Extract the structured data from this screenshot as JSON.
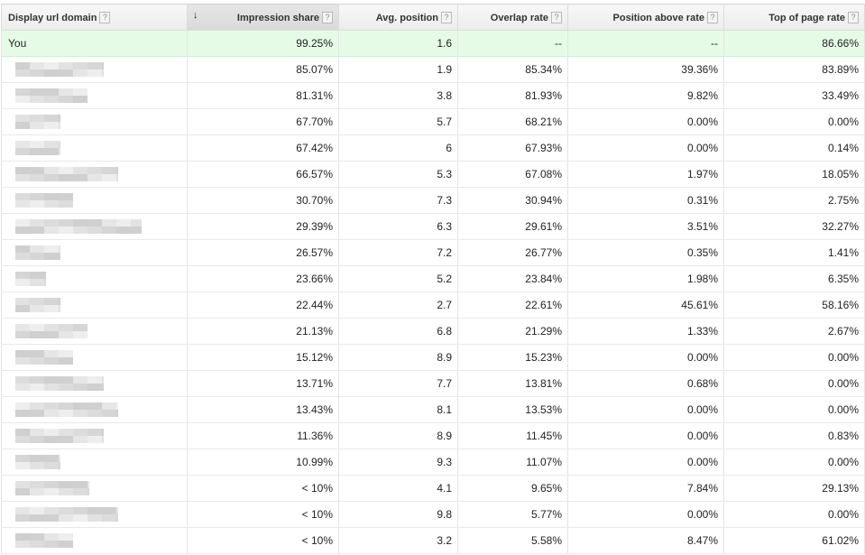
{
  "header": {
    "columns": [
      {
        "label": "Display url domain",
        "align": "left"
      },
      {
        "label": "Impression share",
        "sorted": "descending"
      },
      {
        "label": "Avg. position"
      },
      {
        "label": "Overlap rate"
      },
      {
        "label": "Position above rate"
      },
      {
        "label": "Top of page rate"
      }
    ],
    "help_glyph": "?",
    "sort_glyph": "↓"
  },
  "you_row": {
    "domain": "You",
    "impression_share": "99.25%",
    "avg_position": "1.6",
    "overlap_rate": "--",
    "position_above_rate": "--",
    "top_of_page_rate": "86.66%"
  },
  "rows": [
    {
      "impression_share": "85.07%",
      "avg_position": "1.9",
      "overlap_rate": "85.34%",
      "position_above_rate": "39.36%",
      "top_of_page_rate": "83.89%"
    },
    {
      "impression_share": "81.31%",
      "avg_position": "3.8",
      "overlap_rate": "81.93%",
      "position_above_rate": "9.82%",
      "top_of_page_rate": "33.49%"
    },
    {
      "impression_share": "67.70%",
      "avg_position": "5.7",
      "overlap_rate": "68.21%",
      "position_above_rate": "0.00%",
      "top_of_page_rate": "0.00%"
    },
    {
      "impression_share": "67.42%",
      "avg_position": "6",
      "overlap_rate": "67.93%",
      "position_above_rate": "0.00%",
      "top_of_page_rate": "0.14%"
    },
    {
      "impression_share": "66.57%",
      "avg_position": "5.3",
      "overlap_rate": "67.08%",
      "position_above_rate": "1.97%",
      "top_of_page_rate": "18.05%"
    },
    {
      "impression_share": "30.70%",
      "avg_position": "7.3",
      "overlap_rate": "30.94%",
      "position_above_rate": "0.31%",
      "top_of_page_rate": "2.75%"
    },
    {
      "impression_share": "29.39%",
      "avg_position": "6.3",
      "overlap_rate": "29.61%",
      "position_above_rate": "3.51%",
      "top_of_page_rate": "32.27%"
    },
    {
      "impression_share": "26.57%",
      "avg_position": "7.2",
      "overlap_rate": "26.77%",
      "position_above_rate": "0.35%",
      "top_of_page_rate": "1.41%"
    },
    {
      "impression_share": "23.66%",
      "avg_position": "5.2",
      "overlap_rate": "23.84%",
      "position_above_rate": "1.98%",
      "top_of_page_rate": "6.35%"
    },
    {
      "impression_share": "22.44%",
      "avg_position": "2.7",
      "overlap_rate": "22.61%",
      "position_above_rate": "45.61%",
      "top_of_page_rate": "58.16%"
    },
    {
      "impression_share": "21.13%",
      "avg_position": "6.8",
      "overlap_rate": "21.29%",
      "position_above_rate": "1.33%",
      "top_of_page_rate": "2.67%"
    },
    {
      "impression_share": "15.12%",
      "avg_position": "8.9",
      "overlap_rate": "15.23%",
      "position_above_rate": "0.00%",
      "top_of_page_rate": "0.00%"
    },
    {
      "impression_share": "13.71%",
      "avg_position": "7.7",
      "overlap_rate": "13.81%",
      "position_above_rate": "0.68%",
      "top_of_page_rate": "0.00%"
    },
    {
      "impression_share": "13.43%",
      "avg_position": "8.1",
      "overlap_rate": "13.53%",
      "position_above_rate": "0.00%",
      "top_of_page_rate": "0.00%"
    },
    {
      "impression_share": "11.36%",
      "avg_position": "8.9",
      "overlap_rate": "11.45%",
      "position_above_rate": "0.00%",
      "top_of_page_rate": "0.83%"
    },
    {
      "impression_share": "10.99%",
      "avg_position": "9.3",
      "overlap_rate": "11.07%",
      "position_above_rate": "0.00%",
      "top_of_page_rate": "0.00%"
    },
    {
      "impression_share": "< 10%",
      "avg_position": "4.1",
      "overlap_rate": "9.65%",
      "position_above_rate": "7.84%",
      "top_of_page_rate": "29.13%"
    },
    {
      "impression_share": "< 10%",
      "avg_position": "9.8",
      "overlap_rate": "5.77%",
      "position_above_rate": "0.00%",
      "top_of_page_rate": "0.00%"
    },
    {
      "impression_share": "< 10%",
      "avg_position": "3.2",
      "overlap_rate": "5.58%",
      "position_above_rate": "8.47%",
      "top_of_page_rate": "61.02%"
    }
  ],
  "colors": {
    "you_row_background": "#e6fbe6",
    "header_background": "#ececec",
    "sorted_header_background": "#dddddd",
    "redaction_pixels": "#d6d6d6"
  }
}
